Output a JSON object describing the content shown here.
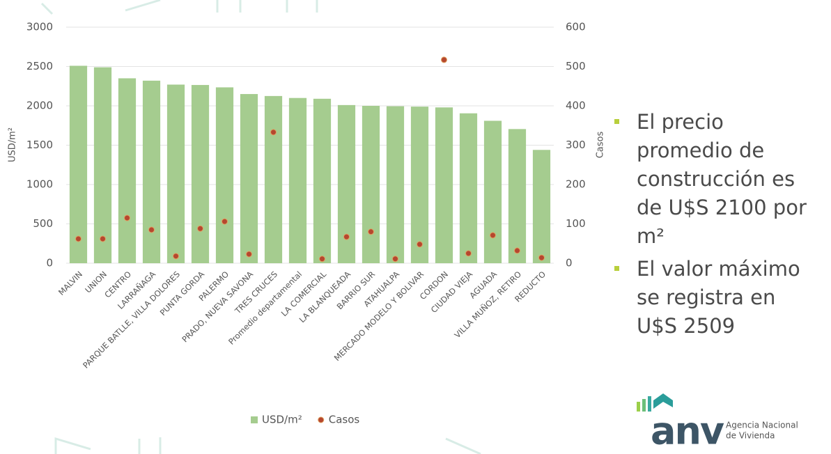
{
  "chart_data": {
    "type": "bar",
    "categories": [
      "MALVIN",
      "UNION",
      "CENTRO",
      "LARRAÑAGA",
      "PARQUE BATLLE, VILLA DOLORES",
      "PUNTA GORDA",
      "PALERMO",
      "PRADO, NUEVA SAVONA",
      "TRES CRUCES",
      "Promedio departamental",
      "LA COMERCIAL",
      "LA BLANQUEADA",
      "BARRIO SUR",
      "ATAHUALPA",
      "MERCADO MODELO Y BOLIVAR",
      "CORDON",
      "CIUDAD VIEJA",
      "AGUADA",
      "VILLA MUÑOZ, RETIRO",
      "REDUCTO"
    ],
    "series": [
      {
        "name": "USD/m²",
        "type": "bar",
        "color": "#a5cc8f",
        "values": [
          2509,
          2490,
          2350,
          2320,
          2270,
          2265,
          2235,
          2150,
          2125,
          2100,
          2090,
          2010,
          2000,
          1995,
          1990,
          1980,
          1905,
          1810,
          1705,
          1440
        ]
      },
      {
        "name": "Casos",
        "type": "scatter",
        "axis": "y2",
        "color": "#b5472f",
        "values": [
          62,
          62,
          115,
          85,
          18,
          88,
          106,
          23,
          333,
          null,
          11,
          67,
          80,
          11,
          48,
          517,
          25,
          71,
          32,
          14
        ]
      }
    ],
    "ylabel": "USD/m²",
    "y2label": "Casos",
    "ylim": [
      0,
      3000
    ],
    "yticks": [
      0,
      500,
      1000,
      1500,
      2000,
      2500,
      3000
    ],
    "y2lim": [
      0,
      600
    ],
    "y2ticks": [
      0,
      100,
      200,
      300,
      400,
      500,
      600
    ],
    "grid": true,
    "legend": "bottom"
  },
  "bullets": [
    "El precio promedio de construcción es de U$S 2100 por m²",
    "El valor máximo se registra en U$S 2509"
  ],
  "logo": {
    "mark": "anv",
    "lines": [
      "Agencia Nacional",
      "de Vivienda"
    ]
  }
}
